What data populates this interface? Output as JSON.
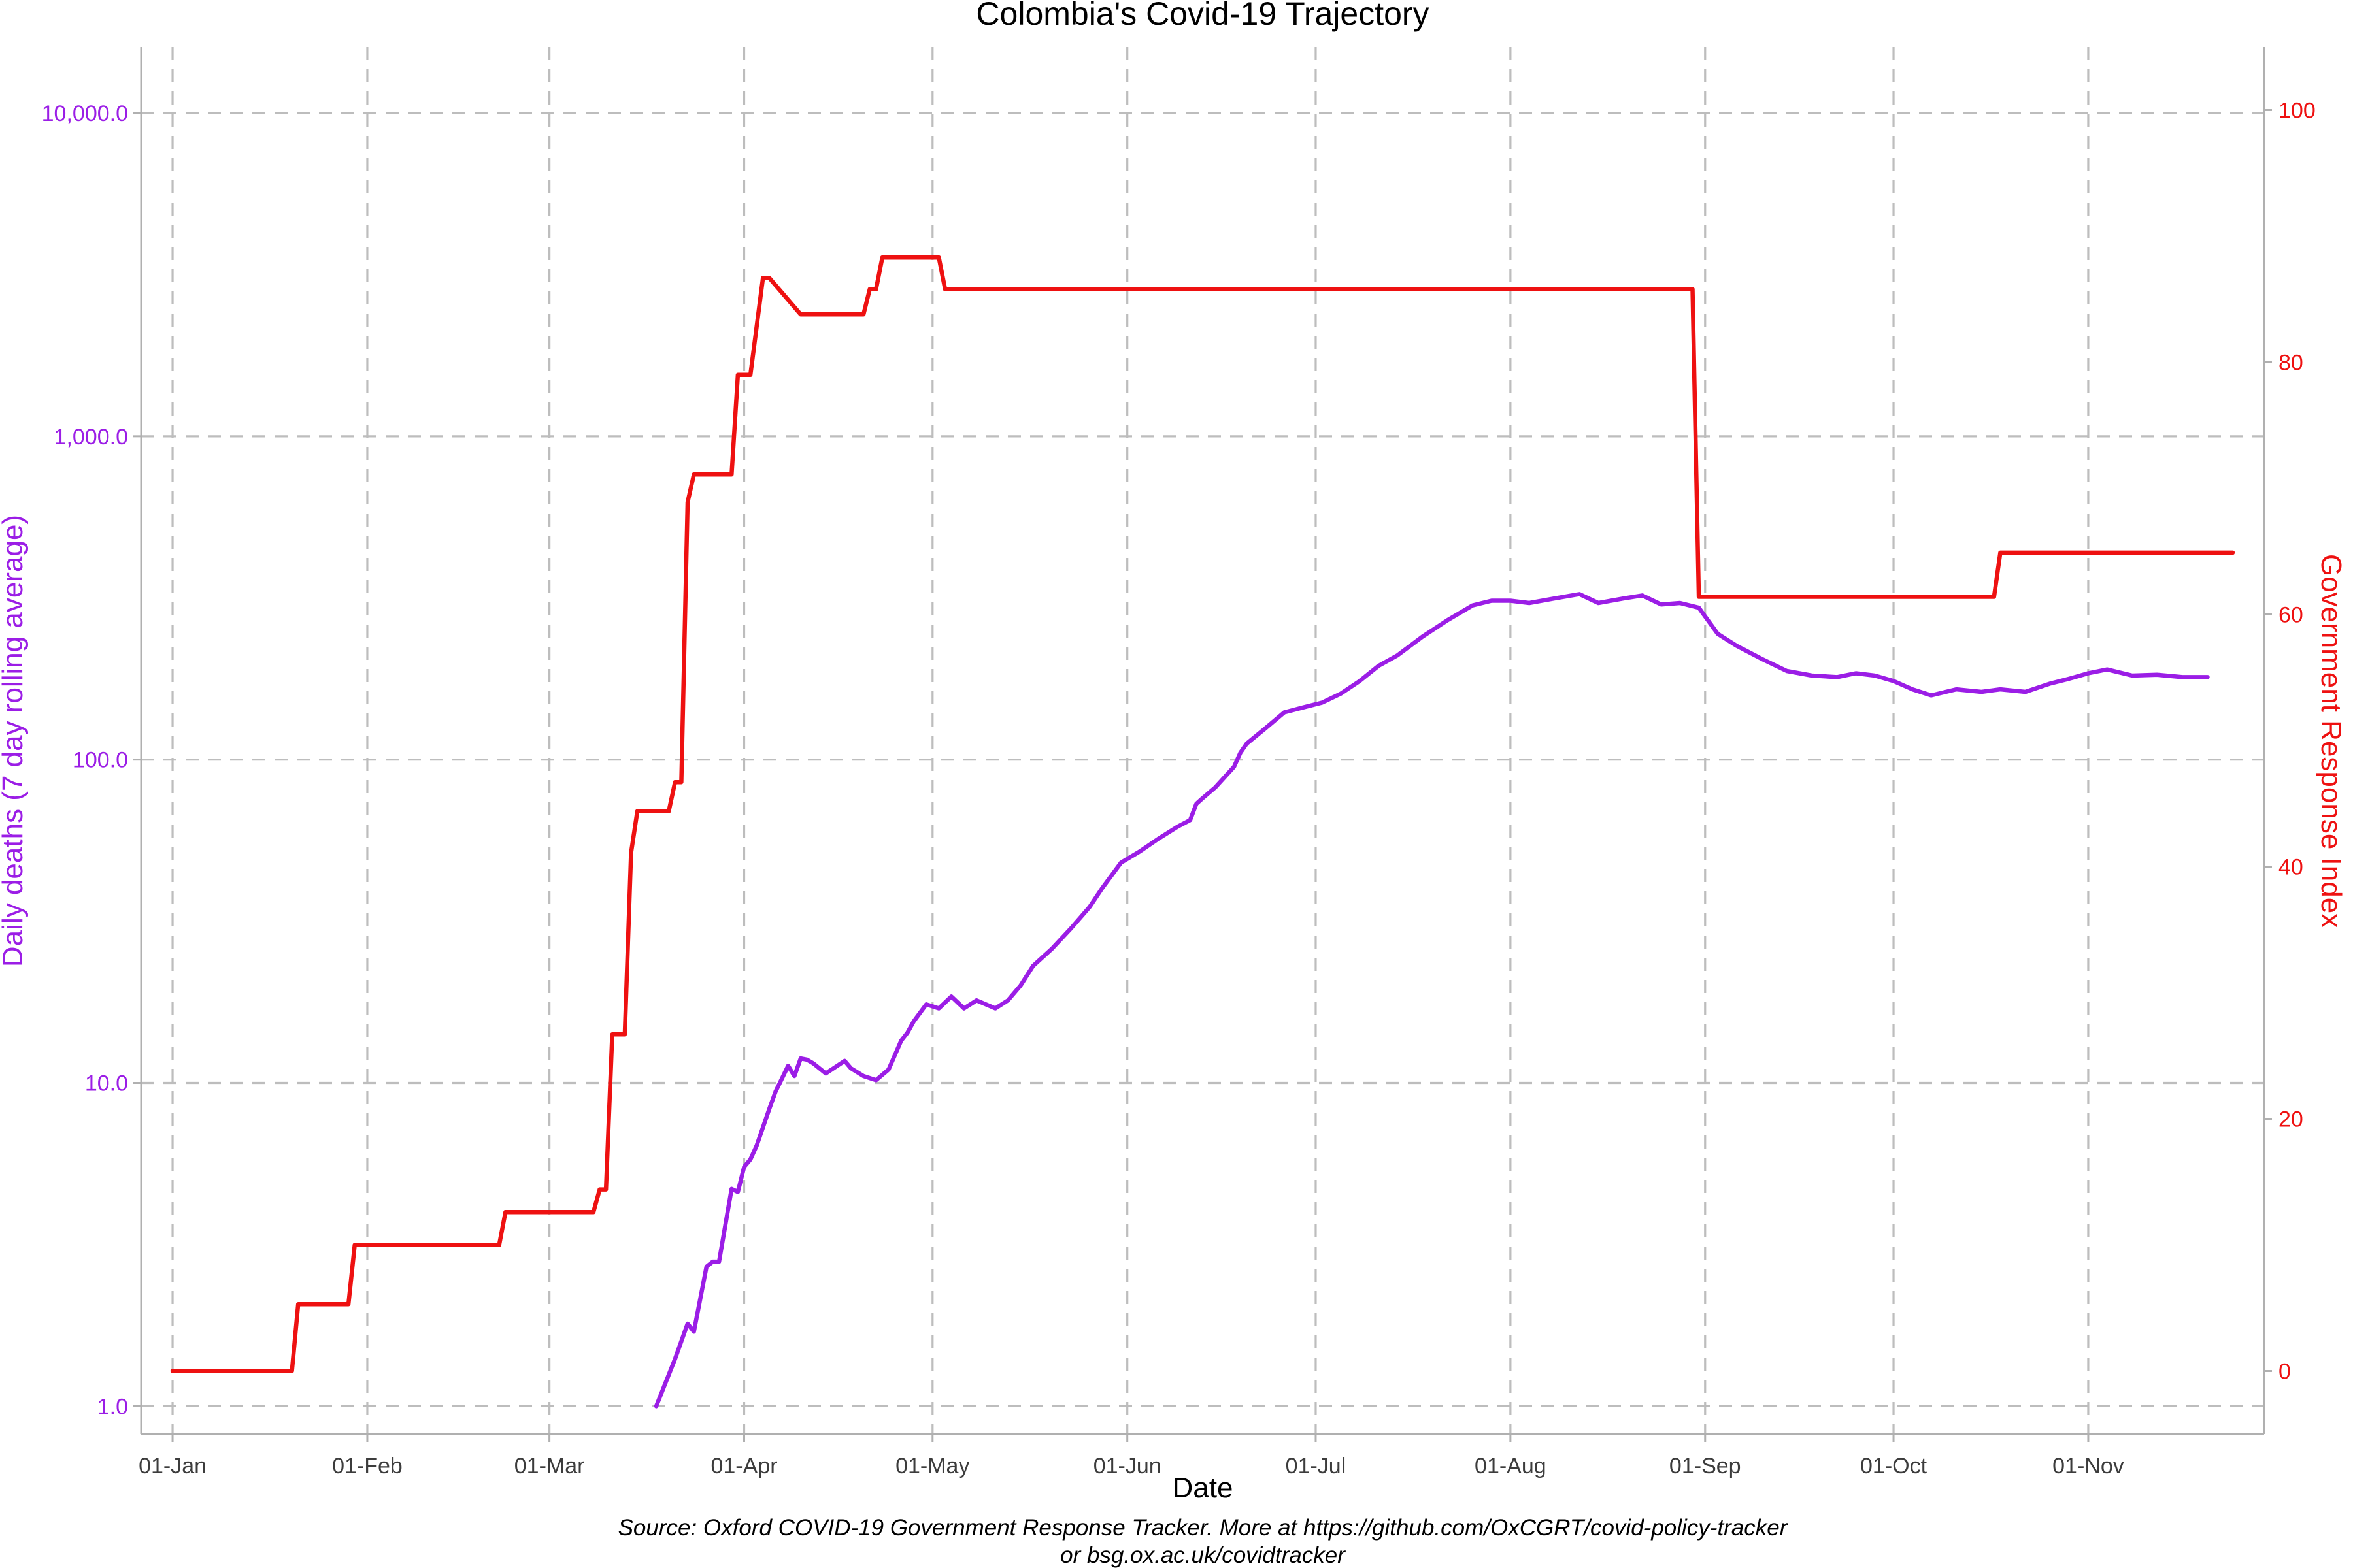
{
  "chart_data": {
    "type": "line",
    "title": "Colombia's Covid-19 Trajectory",
    "xlabel": "Date",
    "ylabel_left": "Daily deaths (7 day rolling average)",
    "ylabel_right": "Government Response Index",
    "y_left_scale": "log10",
    "y_left_lim": [
      0.82,
      16000
    ],
    "y_left_ticks": [
      "1.0",
      "10.0",
      "100.0",
      "1,000.0",
      "10,000.0"
    ],
    "y_right_lim": [
      -5,
      105
    ],
    "y_right_ticks": [
      "0",
      "20",
      "40",
      "60",
      "80",
      "100"
    ],
    "x_lim": [
      "2020-01-01",
      "2020-11-24"
    ],
    "x_ticks": [
      {
        "date": "2020-01-01",
        "label": "01-Jan"
      },
      {
        "date": "2020-02-01",
        "label": "01-Feb"
      },
      {
        "date": "2020-03-01",
        "label": "01-Mar"
      },
      {
        "date": "2020-04-01",
        "label": "01-Apr"
      },
      {
        "date": "2020-05-01",
        "label": "01-May"
      },
      {
        "date": "2020-06-01",
        "label": "01-Jun"
      },
      {
        "date": "2020-07-01",
        "label": "01-Jul"
      },
      {
        "date": "2020-08-01",
        "label": "01-Aug"
      },
      {
        "date": "2020-09-01",
        "label": "01-Sep"
      },
      {
        "date": "2020-10-01",
        "label": "01-Oct"
      },
      {
        "date": "2020-11-01",
        "label": "01-Nov"
      }
    ],
    "grid": true,
    "caption": [
      "Source: Oxford COVID-19 Government Response Tracker. More at https://github.com/OxCGRT/covid-policy-tracker",
      "or bsg.ox.ac.uk/covidtracker"
    ],
    "series": [
      {
        "axis": "left",
        "color": "#9b1de6",
        "x": [
          "2020-03-18",
          "2020-03-21",
          "2020-03-23",
          "2020-03-24",
          "2020-03-26",
          "2020-03-27",
          "2020-03-28",
          "2020-03-30",
          "2020-03-31",
          "2020-04-01",
          "2020-04-02",
          "2020-04-03",
          "2020-04-05",
          "2020-04-06",
          "2020-04-07",
          "2020-04-08",
          "2020-04-09",
          "2020-04-10",
          "2020-04-11",
          "2020-04-12",
          "2020-04-14",
          "2020-04-17",
          "2020-04-18",
          "2020-04-20",
          "2020-04-22",
          "2020-04-24",
          "2020-04-26",
          "2020-04-27",
          "2020-04-28",
          "2020-04-30",
          "2020-05-02",
          "2020-05-04",
          "2020-05-06",
          "2020-05-08",
          "2020-05-11",
          "2020-05-13",
          "2020-05-15",
          "2020-05-17",
          "2020-05-20",
          "2020-05-23",
          "2020-05-26",
          "2020-05-28",
          "2020-05-31",
          "2020-06-03",
          "2020-06-06",
          "2020-06-09",
          "2020-06-11",
          "2020-06-12",
          "2020-06-13",
          "2020-06-15",
          "2020-06-18",
          "2020-06-19",
          "2020-06-20",
          "2020-06-23",
          "2020-06-26",
          "2020-06-29",
          "2020-07-02",
          "2020-07-05",
          "2020-07-08",
          "2020-07-11",
          "2020-07-14",
          "2020-07-18",
          "2020-07-22",
          "2020-07-26",
          "2020-07-29",
          "2020-08-01",
          "2020-08-04",
          "2020-08-08",
          "2020-08-12",
          "2020-08-15",
          "2020-08-19",
          "2020-08-22",
          "2020-08-25",
          "2020-08-28",
          "2020-08-31",
          "2020-09-03",
          "2020-09-06",
          "2020-09-10",
          "2020-09-14",
          "2020-09-18",
          "2020-09-22",
          "2020-09-25",
          "2020-09-28",
          "2020-10-01",
          "2020-10-04",
          "2020-10-07",
          "2020-10-11",
          "2020-10-15",
          "2020-10-18",
          "2020-10-22",
          "2020-10-26",
          "2020-10-29",
          "2020-11-01",
          "2020-11-04",
          "2020-11-08",
          "2020-11-12",
          "2020-11-16",
          "2020-11-20"
        ],
        "y": [
          1.0,
          1.4,
          1.8,
          1.7,
          2.7,
          2.8,
          2.8,
          4.7,
          4.6,
          5.5,
          5.8,
          6.4,
          8.3,
          9.4,
          10.3,
          11.3,
          10.5,
          11.9,
          11.8,
          11.5,
          10.7,
          11.7,
          11.1,
          10.5,
          10.2,
          11.0,
          13.5,
          14.3,
          15.5,
          17.5,
          17.0,
          18.5,
          17.0,
          18.0,
          17.0,
          18.0,
          20.0,
          23.0,
          26.0,
          30.0,
          35.0,
          40.0,
          48.0,
          52.0,
          57.0,
          62.0,
          65.0,
          73.0,
          76.0,
          82.0,
          95.0,
          105.0,
          112.0,
          125.0,
          140.0,
          145.0,
          150.0,
          160.0,
          175.0,
          195.0,
          210.0,
          240.0,
          270.0,
          300.0,
          310.0,
          310.0,
          305.0,
          315.0,
          325.0,
          305.0,
          315.0,
          322.0,
          302.0,
          305.0,
          295.0,
          245.0,
          225.0,
          205.0,
          188.0,
          182.0,
          180.0,
          185.0,
          182.0,
          175.0,
          165.0,
          158.0,
          165.0,
          162.0,
          165.0,
          162.0,
          172.0,
          178.0,
          185.0,
          190.0,
          182.0,
          183.0,
          180.0,
          180.0
        ]
      },
      {
        "axis": "right",
        "color": "#ee1111",
        "x": [
          "2020-01-01",
          "2020-01-20",
          "2020-01-21",
          "2020-01-29",
          "2020-01-30",
          "2020-02-22",
          "2020-02-23",
          "2020-03-07",
          "2020-03-08",
          "2020-03-09",
          "2020-03-10",
          "2020-03-11",
          "2020-03-13",
          "2020-03-14",
          "2020-03-15",
          "2020-03-16",
          "2020-03-20",
          "2020-03-21",
          "2020-03-22",
          "2020-03-23",
          "2020-03-24",
          "2020-03-30",
          "2020-03-31",
          "2020-04-02",
          "2020-04-04",
          "2020-04-05",
          "2020-04-10",
          "2020-04-11",
          "2020-04-20",
          "2020-04-21",
          "2020-04-22",
          "2020-04-23",
          "2020-04-24",
          "2020-05-02",
          "2020-05-03",
          "2020-08-30",
          "2020-08-31",
          "2020-10-17",
          "2020-10-18",
          "2020-11-24"
        ],
        "y": [
          0,
          0,
          5.3,
          5.3,
          10.0,
          10.0,
          12.6,
          12.6,
          12.6,
          14.4,
          14.4,
          26.7,
          26.7,
          41.1,
          44.4,
          44.4,
          44.4,
          46.7,
          46.7,
          68.9,
          71.1,
          71.1,
          79.0,
          79.0,
          86.7,
          86.7,
          83.8,
          83.8,
          83.8,
          85.8,
          85.8,
          88.3,
          88.3,
          88.3,
          85.8,
          85.8,
          61.4,
          61.4,
          64.9,
          64.9
        ]
      }
    ]
  }
}
